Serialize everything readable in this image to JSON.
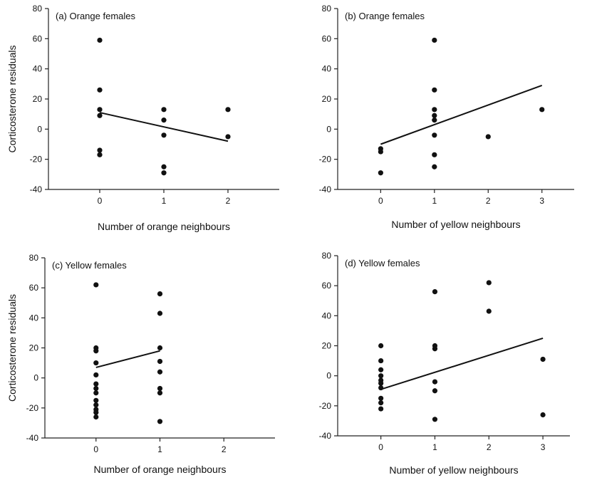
{
  "chart_data": [
    {
      "type": "scatter",
      "panel_label": "(a) Orange females",
      "xlabel": "Number of orange neighbours",
      "ylabel": "Corticosterone residuals",
      "xlim": [
        -0.8,
        2.8
      ],
      "ylim": [
        -40,
        80
      ],
      "xticks": [
        0,
        1,
        2
      ],
      "yticks": [
        -40,
        -20,
        0,
        20,
        40,
        60,
        80
      ],
      "points": [
        {
          "x": 0,
          "y": 59
        },
        {
          "x": 0,
          "y": 26
        },
        {
          "x": 0,
          "y": 13
        },
        {
          "x": 0,
          "y": 9
        },
        {
          "x": 0,
          "y": -14
        },
        {
          "x": 0,
          "y": -17
        },
        {
          "x": 1,
          "y": 13
        },
        {
          "x": 1,
          "y": 6
        },
        {
          "x": 1,
          "y": -4
        },
        {
          "x": 1,
          "y": -25
        },
        {
          "x": 1,
          "y": -29
        },
        {
          "x": 2,
          "y": 13
        },
        {
          "x": 2,
          "y": -5
        }
      ],
      "fit_line": [
        {
          "x": 0,
          "y": 11
        },
        {
          "x": 2,
          "y": -8
        }
      ]
    },
    {
      "type": "scatter",
      "panel_label": "(b) Orange females",
      "xlabel": "Number of yellow neighbours",
      "ylabel": "",
      "xlim": [
        -0.8,
        3.6
      ],
      "ylim": [
        -40,
        80
      ],
      "xticks": [
        0,
        1,
        2,
        3
      ],
      "yticks": [
        -40,
        -20,
        0,
        20,
        40,
        60,
        80
      ],
      "points": [
        {
          "x": 0,
          "y": -13
        },
        {
          "x": 0,
          "y": -15
        },
        {
          "x": 0,
          "y": -29
        },
        {
          "x": 1,
          "y": 59
        },
        {
          "x": 1,
          "y": 26
        },
        {
          "x": 1,
          "y": 13
        },
        {
          "x": 1,
          "y": 9
        },
        {
          "x": 1,
          "y": 6
        },
        {
          "x": 1,
          "y": -4
        },
        {
          "x": 1,
          "y": -17
        },
        {
          "x": 1,
          "y": -25
        },
        {
          "x": 2,
          "y": -5
        },
        {
          "x": 3,
          "y": 13
        }
      ],
      "fit_line": [
        {
          "x": 0,
          "y": -10
        },
        {
          "x": 3,
          "y": 29
        }
      ]
    },
    {
      "type": "scatter",
      "panel_label": "(c) Yellow females",
      "xlabel": "Number of orange neighbours",
      "ylabel": "Corticosterone residuals",
      "xlim": [
        -0.8,
        2.8
      ],
      "ylim": [
        -40,
        80
      ],
      "xticks": [
        0,
        1,
        2
      ],
      "yticks": [
        -40,
        -20,
        0,
        20,
        40,
        60,
        80
      ],
      "points": [
        {
          "x": 0,
          "y": 62
        },
        {
          "x": 0,
          "y": 20
        },
        {
          "x": 0,
          "y": 18
        },
        {
          "x": 0,
          "y": 10
        },
        {
          "x": 0,
          "y": 2
        },
        {
          "x": 0,
          "y": -4
        },
        {
          "x": 0,
          "y": -7
        },
        {
          "x": 0,
          "y": -10
        },
        {
          "x": 0,
          "y": -15
        },
        {
          "x": 0,
          "y": -18
        },
        {
          "x": 0,
          "y": -21
        },
        {
          "x": 0,
          "y": -23
        },
        {
          "x": 0,
          "y": -26
        },
        {
          "x": 1,
          "y": 56
        },
        {
          "x": 1,
          "y": 43
        },
        {
          "x": 1,
          "y": 20
        },
        {
          "x": 1,
          "y": 11
        },
        {
          "x": 1,
          "y": 4
        },
        {
          "x": 1,
          "y": -7
        },
        {
          "x": 1,
          "y": -10
        },
        {
          "x": 1,
          "y": -29
        }
      ],
      "fit_line": [
        {
          "x": 0,
          "y": 7
        },
        {
          "x": 1,
          "y": 18
        }
      ]
    },
    {
      "type": "scatter",
      "panel_label": "(d) Yellow females",
      "xlabel": "Number of yellow neighbours",
      "ylabel": "",
      "xlim": [
        -0.8,
        3.5
      ],
      "ylim": [
        -40,
        80
      ],
      "xticks": [
        0,
        1,
        2,
        3
      ],
      "yticks": [
        -40,
        -20,
        0,
        20,
        40,
        60,
        80
      ],
      "points": [
        {
          "x": 0,
          "y": 20
        },
        {
          "x": 0,
          "y": 10
        },
        {
          "x": 0,
          "y": 4
        },
        {
          "x": 0,
          "y": 0
        },
        {
          "x": 0,
          "y": -3
        },
        {
          "x": 0,
          "y": -5
        },
        {
          "x": 0,
          "y": -8
        },
        {
          "x": 0,
          "y": -15
        },
        {
          "x": 0,
          "y": -18
        },
        {
          "x": 0,
          "y": -22
        },
        {
          "x": 1,
          "y": 56
        },
        {
          "x": 1,
          "y": 20
        },
        {
          "x": 1,
          "y": 18
        },
        {
          "x": 1,
          "y": -4
        },
        {
          "x": 1,
          "y": -10
        },
        {
          "x": 1,
          "y": -29
        },
        {
          "x": 2,
          "y": 62
        },
        {
          "x": 2,
          "y": 43
        },
        {
          "x": 3,
          "y": 11
        },
        {
          "x": 3,
          "y": -26
        }
      ],
      "fit_line": [
        {
          "x": 0,
          "y": -9
        },
        {
          "x": 3,
          "y": 25
        }
      ]
    }
  ]
}
